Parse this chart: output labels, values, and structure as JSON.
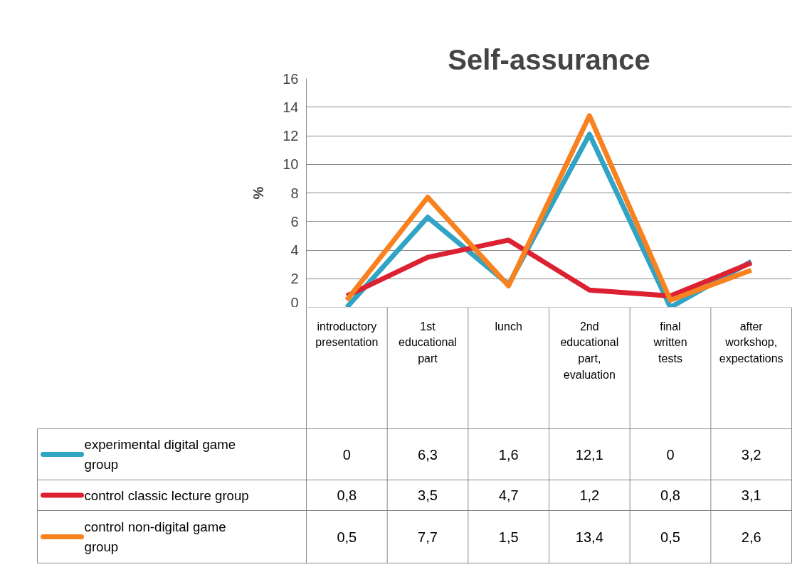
{
  "chart_data": {
    "type": "line",
    "title": "Self-assurance",
    "ylabel": "%",
    "categories": [
      "introductory presentation",
      "1st educational part",
      "lunch",
      "2nd educational part, evaluation",
      "final written tests",
      "after workshop, expectations"
    ],
    "series": [
      {
        "name": "experimental digital game group",
        "color": "#31a3c4",
        "values": [
          0,
          6.3,
          1.6,
          12.1,
          0,
          3.2
        ],
        "value_labels": [
          "0",
          "6,3",
          "1,6",
          "12,1",
          "0",
          "3,2"
        ]
      },
      {
        "name": "control classic lecture group",
        "color": "#dc2232",
        "values": [
          0.8,
          3.5,
          4.7,
          1.2,
          0.8,
          3.1
        ],
        "value_labels": [
          "0,8",
          "3,5",
          "4,7",
          "1,2",
          "0,8",
          "3,1"
        ]
      },
      {
        "name": "control non-digital game group",
        "color": "#f7821f",
        "values": [
          0.5,
          7.7,
          1.5,
          13.4,
          0.5,
          2.6
        ],
        "value_labels": [
          "0,5",
          "7,7",
          "1,5",
          "13,4",
          "0,5",
          "2,6"
        ]
      }
    ],
    "ylim": [
      0,
      16
    ],
    "yticks": [
      0,
      2,
      4,
      6,
      8,
      10,
      12,
      14,
      16
    ],
    "grid": "y",
    "legend": "bottom",
    "marker": "none",
    "line_style": "solid"
  }
}
